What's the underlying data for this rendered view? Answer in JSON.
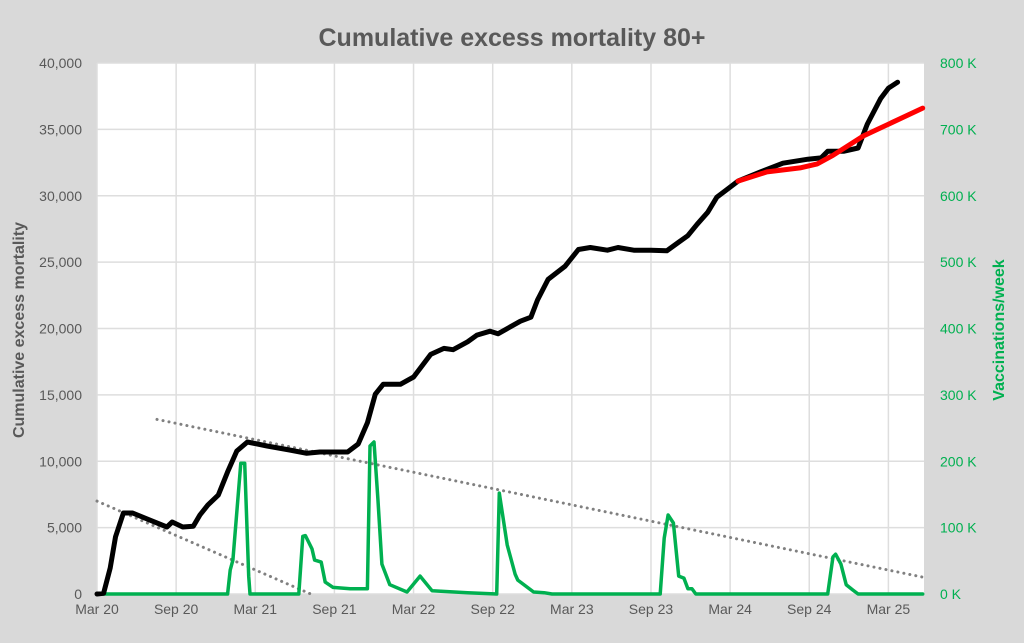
{
  "chart_data": {
    "type": "line",
    "title": "Cumulative excess mortality 80+",
    "xlabel": "",
    "ylabel": "Cumulative excess mortality",
    "y2label": "Vaccinations/week",
    "x_unit": "months since Mar 2020",
    "xlim": [
      0,
      62.7
    ],
    "ylim": [
      0,
      40000
    ],
    "y2lim": [
      0,
      800
    ],
    "x_ticks": [
      {
        "m": 0,
        "label": "Mar 20"
      },
      {
        "m": 6,
        "label": "Sep 20"
      },
      {
        "m": 12,
        "label": "Mar 21"
      },
      {
        "m": 18,
        "label": "Sep 21"
      },
      {
        "m": 24,
        "label": "Mar 22"
      },
      {
        "m": 30,
        "label": "Sep 22"
      },
      {
        "m": 36,
        "label": "Mar 23"
      },
      {
        "m": 42,
        "label": "Sep 23"
      },
      {
        "m": 48,
        "label": "Mar 24"
      },
      {
        "m": 54,
        "label": "Sep 24"
      },
      {
        "m": 60,
        "label": "Mar 25"
      }
    ],
    "y_ticks": [
      {
        "v": 0,
        "label": "0"
      },
      {
        "v": 5000,
        "label": "5,000"
      },
      {
        "v": 10000,
        "label": "10,000"
      },
      {
        "v": 15000,
        "label": "15,000"
      },
      {
        "v": 20000,
        "label": "20,000"
      },
      {
        "v": 25000,
        "label": "25,000"
      },
      {
        "v": 30000,
        "label": "30,000"
      },
      {
        "v": 35000,
        "label": "35,000"
      },
      {
        "v": 40000,
        "label": "40,000"
      }
    ],
    "y2_ticks": [
      {
        "v": 0,
        "label": "0 K"
      },
      {
        "v": 100,
        "label": "100 K"
      },
      {
        "v": 200,
        "label": "200 K"
      },
      {
        "v": 300,
        "label": "300 K"
      },
      {
        "v": 400,
        "label": "400 K"
      },
      {
        "v": 500,
        "label": "500 K"
      },
      {
        "v": 600,
        "label": "600 K"
      },
      {
        "v": 700,
        "label": "700 K"
      },
      {
        "v": 800,
        "label": "800 K"
      }
    ],
    "grid": true,
    "series": [
      {
        "name": "Cumulative excess mortality",
        "axis": "left",
        "color": "#000000",
        "points": [
          [
            0,
            0
          ],
          [
            0.5,
            50
          ],
          [
            1.0,
            1960
          ],
          [
            1.4,
            4300
          ],
          [
            2.0,
            6100
          ],
          [
            2.7,
            6100
          ],
          [
            4.0,
            5570
          ],
          [
            5.3,
            5050
          ],
          [
            5.7,
            5420
          ],
          [
            6.5,
            5050
          ],
          [
            7.3,
            5100
          ],
          [
            7.8,
            5950
          ],
          [
            8.4,
            6700
          ],
          [
            9.2,
            7450
          ],
          [
            9.9,
            9200
          ],
          [
            10.6,
            10770
          ],
          [
            11.4,
            11450
          ],
          [
            12.9,
            11150
          ],
          [
            14.6,
            10850
          ],
          [
            15.9,
            10600
          ],
          [
            16.9,
            10700
          ],
          [
            19.0,
            10700
          ],
          [
            19.8,
            11300
          ],
          [
            20.5,
            12900
          ],
          [
            21.1,
            15050
          ],
          [
            21.7,
            15800
          ],
          [
            23.0,
            15800
          ],
          [
            24.0,
            16350
          ],
          [
            25.3,
            18050
          ],
          [
            26.3,
            18500
          ],
          [
            27.0,
            18400
          ],
          [
            28.1,
            19000
          ],
          [
            28.8,
            19500
          ],
          [
            29.8,
            19800
          ],
          [
            30.4,
            19600
          ],
          [
            32.1,
            20550
          ],
          [
            32.9,
            20850
          ],
          [
            33.4,
            22150
          ],
          [
            34.2,
            23700
          ],
          [
            35.5,
            24700
          ],
          [
            36.5,
            25950
          ],
          [
            37.4,
            26100
          ],
          [
            38.7,
            25900
          ],
          [
            39.5,
            26100
          ],
          [
            40.7,
            25900
          ],
          [
            42.0,
            25900
          ],
          [
            43.2,
            25850
          ],
          [
            44.1,
            26500
          ],
          [
            44.8,
            27000
          ],
          [
            45.5,
            27850
          ],
          [
            46.3,
            28750
          ],
          [
            47.0,
            29900
          ],
          [
            47.8,
            30500
          ],
          [
            48.6,
            31100
          ],
          [
            50.3,
            31800
          ],
          [
            52.0,
            32450
          ],
          [
            53.9,
            32750
          ],
          [
            54.9,
            32850
          ],
          [
            55.4,
            33350
          ],
          [
            56.6,
            33350
          ],
          [
            57.7,
            33600
          ],
          [
            58.4,
            35400
          ],
          [
            59.4,
            37300
          ],
          [
            60.0,
            38100
          ],
          [
            60.7,
            38550
          ]
        ]
      },
      {
        "name": "Trend",
        "axis": "left",
        "color": "#ff0000",
        "points": [
          [
            48.6,
            31100
          ],
          [
            50.8,
            31800
          ],
          [
            53.3,
            32100
          ],
          [
            54.6,
            32400
          ],
          [
            55.8,
            33050
          ],
          [
            58.1,
            34500
          ],
          [
            62.6,
            36600
          ]
        ]
      },
      {
        "name": "Vaccinations/week (K)",
        "axis": "right",
        "color": "#00b050",
        "points": [
          [
            0,
            0
          ],
          [
            9.9,
            0
          ],
          [
            10.1,
            36
          ],
          [
            10.3,
            51
          ],
          [
            10.9,
            197
          ],
          [
            11.2,
            197
          ],
          [
            11.5,
            27
          ],
          [
            11.6,
            0
          ],
          [
            15.3,
            0
          ],
          [
            15.6,
            87
          ],
          [
            15.8,
            88
          ],
          [
            16.3,
            68
          ],
          [
            16.5,
            51
          ],
          [
            17.0,
            48
          ],
          [
            17.3,
            18
          ],
          [
            17.9,
            10
          ],
          [
            19.2,
            8
          ],
          [
            20.5,
            8
          ],
          [
            20.7,
            223
          ],
          [
            21.0,
            229
          ],
          [
            21.3,
            143
          ],
          [
            21.6,
            45
          ],
          [
            22.2,
            14
          ],
          [
            23.5,
            3
          ],
          [
            24.5,
            27
          ],
          [
            25.4,
            5
          ],
          [
            28.1,
            2
          ],
          [
            30.3,
            0
          ],
          [
            30.5,
            152
          ],
          [
            31.1,
            74
          ],
          [
            31.7,
            30
          ],
          [
            31.9,
            21
          ],
          [
            33.1,
            3
          ],
          [
            33.9,
            2
          ],
          [
            34.5,
            0
          ],
          [
            42.7,
            0
          ],
          [
            43.0,
            84
          ],
          [
            43.3,
            119
          ],
          [
            43.7,
            107
          ],
          [
            44.1,
            27
          ],
          [
            44.5,
            24
          ],
          [
            44.8,
            8
          ],
          [
            45.1,
            8
          ],
          [
            45.4,
            0
          ],
          [
            55.4,
            0
          ],
          [
            55.8,
            56
          ],
          [
            56.0,
            60
          ],
          [
            56.4,
            45
          ],
          [
            56.8,
            14
          ],
          [
            57.3,
            6
          ],
          [
            57.7,
            0
          ],
          [
            62.6,
            0
          ]
        ]
      },
      {
        "name": "Dotted trendline 1",
        "axis": "left",
        "color": "#808080",
        "dashed": true,
        "points": [
          [
            0,
            7000
          ],
          [
            16.2,
            0
          ]
        ]
      },
      {
        "name": "Dotted trendline 2",
        "axis": "left",
        "color": "#808080",
        "dashed": true,
        "points": [
          [
            4.55,
            13150
          ],
          [
            62.7,
            1250
          ]
        ]
      }
    ]
  }
}
